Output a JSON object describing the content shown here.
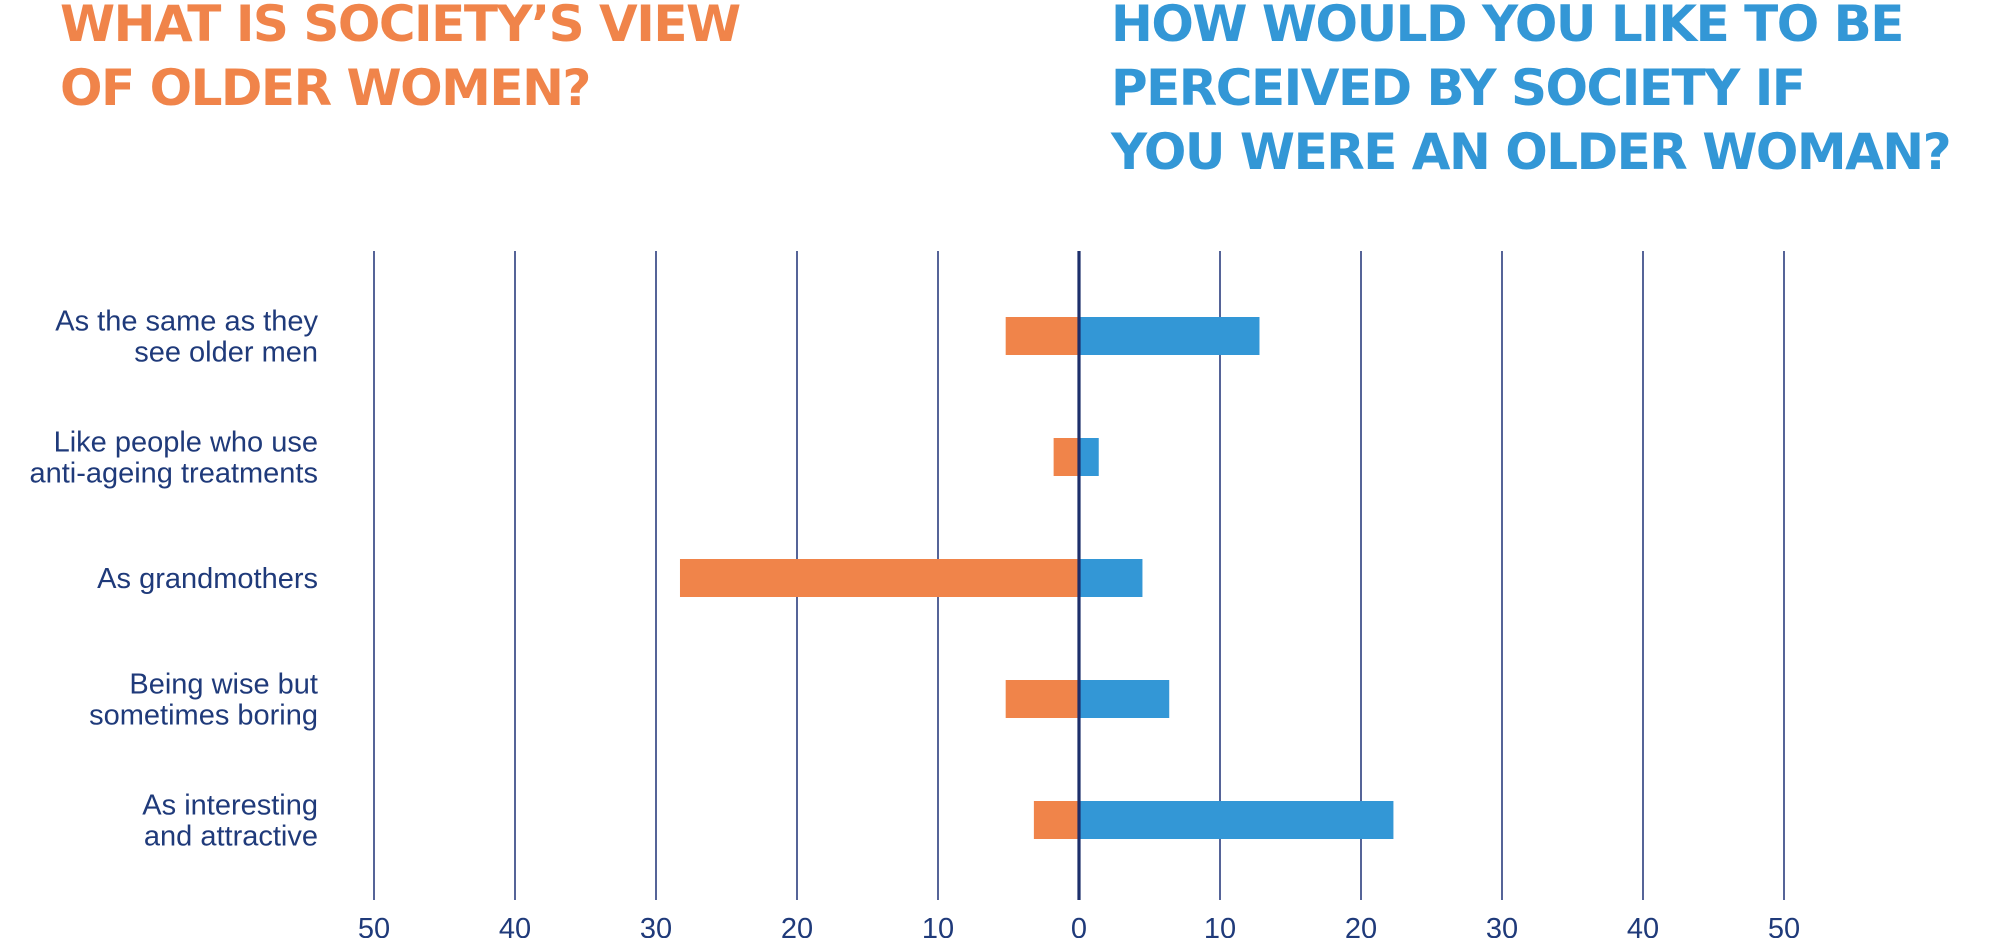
{
  "titles": {
    "left": "WHAT IS SOCIETY’S VIEW\nOF OLDER WOMEN?",
    "right": "HOW WOULD YOU LIKE TO BE\nPERCEIVED BY SOCIETY IF\nYOU WERE AN OLDER WOMAN?"
  },
  "colors": {
    "society_view": "#f0844a",
    "preferred_view": "#3397d6",
    "gridline": "#2b3d7e",
    "axis": "#1d2f6b",
    "label_text": "#1f3a7a"
  },
  "chart_data": {
    "type": "bar",
    "orientation": "horizontal-diverging",
    "categories": [
      [
        "As the same as they",
        "see older men"
      ],
      [
        "Like people who use",
        "anti-ageing treatments"
      ],
      [
        "As grandmothers"
      ],
      [
        "Being wise but",
        "sometimes boring"
      ],
      [
        "As interesting",
        "and attractive"
      ]
    ],
    "series": [
      {
        "name": "WHAT IS SOCIETY’S VIEW OF OLDER WOMEN?",
        "side": "left",
        "values": [
          5.2,
          1.8,
          28.3,
          5.2,
          3.2
        ]
      },
      {
        "name": "HOW WOULD YOU LIKE TO BE PERCEIVED BY SOCIETY IF YOU WERE AN OLDER WOMAN?",
        "side": "right",
        "values": [
          12.8,
          1.4,
          4.5,
          6.4,
          22.3
        ]
      }
    ],
    "xlim": [
      -50,
      50
    ],
    "ticks": [
      -50,
      -40,
      -30,
      -20,
      -10,
      0,
      10,
      20,
      30,
      40,
      50
    ],
    "tick_labels": [
      "50",
      "40",
      "30",
      "20",
      "10",
      "0",
      "10",
      "20",
      "30",
      "40",
      "50"
    ],
    "grid": true,
    "legend": "titles above each side"
  }
}
